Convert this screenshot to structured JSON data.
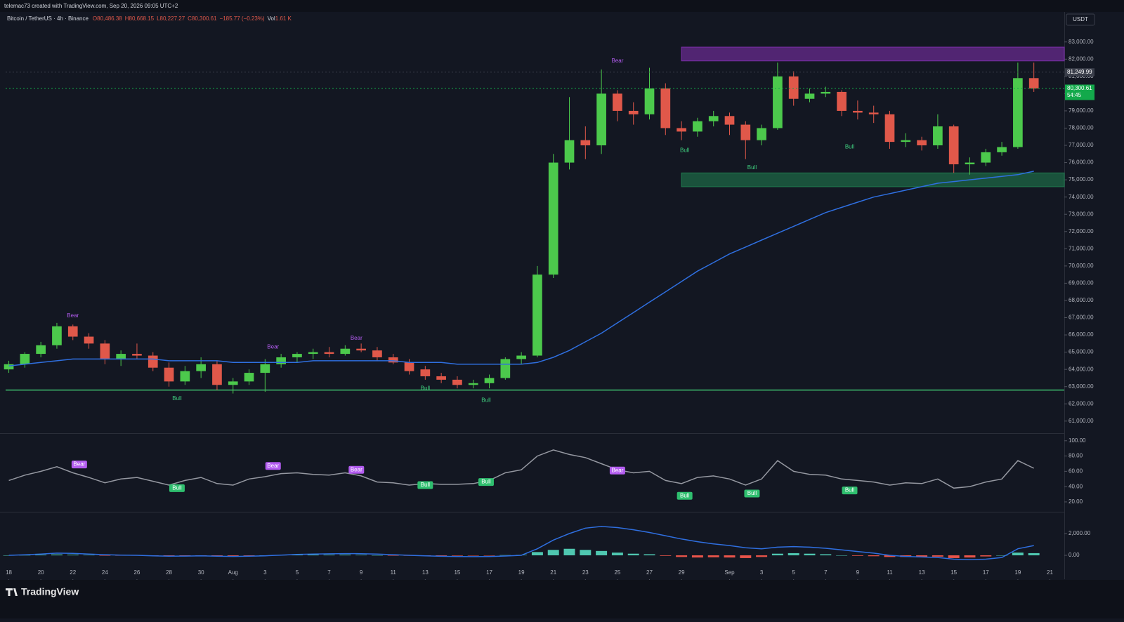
{
  "header": {
    "author_line": "telemac73 created with TradingView.com, Sep 20, 2026 09:05 UTC+2",
    "symbol": "Bitcoin / TetherUS · 4h · Binance",
    "open": "O80,486.38",
    "high": "H80,668.15",
    "low": "L80,227.27",
    "close": "C80,300.61",
    "change": "−185.77 (−0.23%)",
    "volume_label": "Vol",
    "volume": "1.61 K",
    "currency": "USDT"
  },
  "footer": {
    "brand": "TradingView"
  },
  "chart_data": [
    {
      "type": "candlestick",
      "x": [
        0,
        1,
        2,
        3,
        4,
        5,
        6,
        7,
        8,
        9,
        10,
        11,
        12,
        13,
        14,
        15,
        16,
        17,
        18,
        19,
        20,
        21,
        22,
        23,
        24,
        25,
        26,
        27,
        28,
        29,
        30,
        31,
        32,
        33,
        34,
        35,
        36,
        37,
        38,
        39,
        40,
        41,
        42,
        43,
        44,
        45,
        46,
        47,
        48,
        49,
        50,
        51,
        52,
        53,
        54,
        55,
        56,
        57,
        58,
        59,
        60,
        61,
        62,
        63,
        64
      ],
      "open": [
        64000,
        64300,
        64900,
        65400,
        66500,
        65900,
        65500,
        64600,
        64900,
        64800,
        64100,
        63300,
        63900,
        64300,
        63100,
        63300,
        63800,
        64300,
        64700,
        64900,
        65000,
        64900,
        65200,
        65100,
        64700,
        64400,
        64000,
        63600,
        63400,
        63100,
        63200,
        63500,
        64600,
        64800,
        69500,
        76000,
        77300,
        77000,
        80000,
        79000,
        78800,
        80300,
        78000,
        77800,
        78400,
        78700,
        78200,
        77300,
        78000,
        81000,
        79700,
        80000,
        80100,
        79000,
        78900,
        78800,
        77200,
        77300,
        77000,
        78100,
        75900,
        76000,
        76600,
        76900,
        80900
      ],
      "high": [
        64500,
        65000,
        65600,
        66700,
        66600,
        66100,
        65700,
        65100,
        65500,
        65000,
        64400,
        64200,
        64700,
        64500,
        63500,
        64000,
        64600,
        64900,
        65000,
        65200,
        65300,
        65400,
        65500,
        65300,
        64900,
        64600,
        64200,
        63800,
        63600,
        63400,
        63700,
        64700,
        65000,
        70000,
        76500,
        79800,
        78100,
        81400,
        80200,
        79500,
        81500,
        80600,
        78400,
        78600,
        79000,
        78900,
        78400,
        78200,
        81800,
        81300,
        80300,
        80400,
        80200,
        79600,
        79300,
        79000,
        77700,
        77500,
        78800,
        78200,
        76300,
        76800,
        77200,
        81800,
        81800
      ],
      "low": [
        63800,
        64100,
        64700,
        65200,
        65700,
        65200,
        64300,
        64200,
        64600,
        63900,
        63000,
        63100,
        63500,
        62800,
        62600,
        63100,
        62700,
        64100,
        64400,
        64600,
        64700,
        64800,
        65000,
        64500,
        64300,
        63700,
        63400,
        63200,
        62900,
        62900,
        62900,
        63400,
        64300,
        64700,
        69300,
        75600,
        76200,
        76500,
        78400,
        78200,
        78500,
        77600,
        77300,
        77500,
        78100,
        77600,
        76200,
        77000,
        77900,
        79300,
        79500,
        79800,
        78700,
        78500,
        78300,
        76800,
        76900,
        76700,
        76800,
        75400,
        75300,
        75800,
        76400,
        76800,
        80100
      ],
      "close": [
        64300,
        64900,
        65400,
        66500,
        65900,
        65500,
        64600,
        64900,
        64800,
        64100,
        63300,
        63900,
        64300,
        63100,
        63300,
        63800,
        64300,
        64700,
        64900,
        65000,
        64900,
        65200,
        65100,
        64700,
        64400,
        63900,
        63600,
        63400,
        63100,
        63200,
        63500,
        64600,
        64800,
        69500,
        76000,
        77300,
        77000,
        80000,
        79000,
        78800,
        80300,
        78000,
        77800,
        78400,
        78700,
        78200,
        77300,
        78000,
        81000,
        79700,
        80000,
        80100,
        79000,
        78900,
        78800,
        77200,
        77300,
        77000,
        78100,
        75900,
        76000,
        76600,
        76900,
        80900,
        80300
      ],
      "colors": {
        "up": "#4cc94c",
        "down": "#e0584a"
      },
      "lines": [
        {
          "color": "#2f6fe0",
          "values": [
            64200,
            64300,
            64400,
            64500,
            64600,
            64600,
            64600,
            64600,
            64600,
            64600,
            64500,
            64500,
            64500,
            64500,
            64400,
            64400,
            64400,
            64400,
            64400,
            64500,
            64500,
            64500,
            64500,
            64500,
            64500,
            64400,
            64400,
            64400,
            64300,
            64300,
            64300,
            64300,
            64300,
            64400,
            64700,
            65100,
            65600,
            66100,
            66700,
            67300,
            67900,
            68500,
            69100,
            69700,
            70200,
            70700,
            71100,
            71500,
            71900,
            72300,
            72700,
            73100,
            73400,
            73700,
            74000,
            74200,
            74400,
            74600,
            74800,
            74900,
            75000,
            75100,
            75200,
            75300,
            75500
          ]
        }
      ],
      "zones": [
        {
          "x": [
            42,
            65.9
          ],
          "y": [
            81900,
            82700
          ],
          "color": "#7b2fa8"
        },
        {
          "x": [
            42,
            65.9
          ],
          "y": [
            74600,
            75400
          ],
          "color": "#1f7a4e"
        }
      ],
      "levels": [
        {
          "y": 62800,
          "color": "#3fbf6f"
        }
      ],
      "price_labels": [
        {
          "value": 81249.99,
          "label": "81,249.99",
          "color": "#3a3e4a"
        },
        {
          "value": 80300.61,
          "label": "80,300.61",
          "color": "#13a94b",
          "countdown": "54:45"
        }
      ],
      "annotations": [
        {
          "text": "Bear",
          "x": 4,
          "y": 67100,
          "color": "#b35cf0"
        },
        {
          "text": "Bear",
          "x": 16.5,
          "y": 65300,
          "color": "#b35cf0"
        },
        {
          "text": "Bear",
          "x": 21.7,
          "y": 65800,
          "color": "#b35cf0"
        },
        {
          "text": "Bear",
          "x": 38,
          "y": 81900,
          "color": "#b35cf0"
        },
        {
          "text": "Bull",
          "x": 10.5,
          "y": 62300,
          "color": "#3fcf7f"
        },
        {
          "text": "Bull",
          "x": 26,
          "y": 62900,
          "color": "#3fcf7f"
        },
        {
          "text": "Bull",
          "x": 29.8,
          "y": 62200,
          "color": "#3fcf7f"
        },
        {
          "text": "Bull",
          "x": 42.2,
          "y": 76700,
          "color": "#3fcf7f"
        },
        {
          "text": "Bull",
          "x": 46.4,
          "y": 75700,
          "color": "#3fcf7f"
        },
        {
          "text": "Bull",
          "x": 52.5,
          "y": 76900,
          "color": "#3fcf7f"
        }
      ],
      "xlim": [
        -0.2,
        65.9
      ],
      "xticks": [
        {
          "value": 0,
          "label": "18"
        },
        {
          "value": 2,
          "label": "20"
        },
        {
          "value": 4,
          "label": "22"
        },
        {
          "value": 6,
          "label": "24"
        },
        {
          "value": 8,
          "label": "26"
        },
        {
          "value": 10,
          "label": "28"
        },
        {
          "value": 12,
          "label": "30"
        },
        {
          "value": 14,
          "label": "Aug"
        },
        {
          "value": 16,
          "label": "3"
        },
        {
          "value": 18,
          "label": "5"
        },
        {
          "value": 20,
          "label": "7"
        },
        {
          "value": 22,
          "label": "9"
        },
        {
          "value": 24,
          "label": "11"
        },
        {
          "value": 26,
          "label": "13"
        },
        {
          "value": 28,
          "label": "15"
        },
        {
          "value": 30,
          "label": "17"
        },
        {
          "value": 32,
          "label": "19"
        },
        {
          "value": 34,
          "label": "21"
        },
        {
          "value": 36,
          "label": "23"
        },
        {
          "value": 38,
          "label": "25"
        },
        {
          "value": 40,
          "label": "27"
        },
        {
          "value": 42,
          "label": "29"
        },
        {
          "value": 45,
          "label": "Sep"
        },
        {
          "value": 47,
          "label": "3"
        },
        {
          "value": 49,
          "label": "5"
        },
        {
          "value": 51,
          "label": "7"
        },
        {
          "value": 53,
          "label": "9"
        },
        {
          "value": 55,
          "label": "11"
        },
        {
          "value": 57,
          "label": "13"
        },
        {
          "value": 59,
          "label": "15"
        },
        {
          "value": 61,
          "label": "17"
        },
        {
          "value": 63,
          "label": "19"
        },
        {
          "value": 65,
          "label": "21"
        }
      ],
      "ylim": [
        60300,
        84700
      ],
      "yticks": [
        {
          "value": 61000,
          "label": "61,000.00"
        },
        {
          "value": 62000,
          "label": "62,000.00"
        },
        {
          "value": 63000,
          "label": "63,000.00"
        },
        {
          "value": 64000,
          "label": "64,000.00"
        },
        {
          "value": 65000,
          "label": "65,000.00"
        },
        {
          "value": 66000,
          "label": "66,000.00"
        },
        {
          "value": 67000,
          "label": "67,000.00"
        },
        {
          "value": 68000,
          "label": "68,000.00"
        },
        {
          "value": 69000,
          "label": "69,000.00"
        },
        {
          "value": 70000,
          "label": "70,000.00"
        },
        {
          "value": 71000,
          "label": "71,000.00"
        },
        {
          "value": 72000,
          "label": "72,000.00"
        },
        {
          "value": 73000,
          "label": "73,000.00"
        },
        {
          "value": 74000,
          "label": "74,000.00"
        },
        {
          "value": 75000,
          "label": "75,000.00"
        },
        {
          "value": 76000,
          "label": "76,000.00"
        },
        {
          "value": 77000,
          "label": "77,000.00"
        },
        {
          "value": 78000,
          "label": "78,000.00"
        },
        {
          "value": 79000,
          "label": "79,000.00"
        },
        {
          "value": 80000,
          "label": "80,000.00"
        },
        {
          "value": 81000,
          "label": "81,000.00"
        },
        {
          "value": 82000,
          "label": "82,000.00"
        },
        {
          "value": 83000,
          "label": "83,000.00"
        }
      ]
    },
    {
      "type": "line",
      "x": [
        0,
        1,
        2,
        3,
        4,
        5,
        6,
        7,
        8,
        9,
        10,
        11,
        12,
        13,
        14,
        15,
        16,
        17,
        18,
        19,
        20,
        21,
        22,
        23,
        24,
        25,
        26,
        27,
        28,
        29,
        30,
        31,
        32,
        33,
        34,
        35,
        36,
        37,
        38,
        39,
        40,
        41,
        42,
        43,
        44,
        45,
        46,
        47,
        48,
        49,
        50,
        51,
        52,
        53,
        54,
        55,
        56,
        57,
        58,
        59,
        60,
        61,
        62,
        63,
        64
      ],
      "lines": [
        {
          "color": "#9598a1",
          "values": [
            48,
            55,
            60,
            66,
            58,
            52,
            45,
            50,
            52,
            47,
            42,
            48,
            52,
            44,
            42,
            50,
            53,
            57,
            58,
            56,
            55,
            58,
            54,
            46,
            45,
            42,
            44,
            43,
            43,
            44,
            48,
            58,
            62,
            80,
            88,
            82,
            78,
            70,
            62,
            58,
            60,
            48,
            44,
            52,
            54,
            50,
            42,
            50,
            74,
            60,
            56,
            55,
            50,
            48,
            46,
            42,
            45,
            44,
            50,
            38,
            40,
            46,
            50,
            74,
            64
          ]
        }
      ],
      "annotations": [
        {
          "text": "Bear",
          "x": 4.4,
          "y": 69,
          "color": "#b35cf0"
        },
        {
          "text": "Bear",
          "x": 16.5,
          "y": 67,
          "color": "#b35cf0"
        },
        {
          "text": "Bear",
          "x": 21.7,
          "y": 62,
          "color": "#b35cf0"
        },
        {
          "text": "Bear",
          "x": 38,
          "y": 61,
          "color": "#b35cf0"
        },
        {
          "text": "Bull",
          "x": 10.5,
          "y": 38,
          "color": "#2fbf6f"
        },
        {
          "text": "Bull",
          "x": 26,
          "y": 42,
          "color": "#2fbf6f"
        },
        {
          "text": "Bull",
          "x": 29.8,
          "y": 46,
          "color": "#2fbf6f"
        },
        {
          "text": "Bull",
          "x": 42.2,
          "y": 28,
          "color": "#2fbf6f"
        },
        {
          "text": "Bull",
          "x": 46.4,
          "y": 31,
          "color": "#2fbf6f"
        },
        {
          "text": "Bull",
          "x": 52.5,
          "y": 35,
          "color": "#2fbf6f"
        }
      ],
      "ylim": [
        8,
        109
      ],
      "yticks": [
        {
          "value": 100,
          "label": "100.00"
        },
        {
          "value": 80,
          "label": "80.00"
        },
        {
          "value": 60,
          "label": "60.00"
        },
        {
          "value": 40,
          "label": "40.00"
        },
        {
          "value": 20,
          "label": "20.00"
        }
      ]
    },
    {
      "type": "bar",
      "x": [
        0,
        1,
        2,
        3,
        4,
        5,
        6,
        7,
        8,
        9,
        10,
        11,
        12,
        13,
        14,
        15,
        16,
        17,
        18,
        19,
        20,
        21,
        22,
        23,
        24,
        25,
        26,
        27,
        28,
        29,
        30,
        31,
        32,
        33,
        34,
        35,
        36,
        37,
        38,
        39,
        40,
        41,
        42,
        43,
        44,
        45,
        46,
        47,
        48,
        49,
        50,
        51,
        52,
        53,
        54,
        55,
        56,
        57,
        58,
        59,
        60,
        61,
        62,
        63,
        64
      ],
      "values": [
        0,
        20,
        50,
        80,
        60,
        30,
        -20,
        -30,
        -20,
        -40,
        -60,
        -40,
        -20,
        -50,
        -60,
        -30,
        0,
        30,
        50,
        60,
        50,
        60,
        40,
        10,
        -20,
        -40,
        -50,
        -50,
        -40,
        -30,
        -10,
        20,
        40,
        300,
        500,
        600,
        500,
        400,
        250,
        150,
        100,
        -50,
        -150,
        -200,
        -180,
        -200,
        -250,
        -150,
        150,
        200,
        150,
        100,
        0,
        -50,
        -80,
        -150,
        -150,
        -160,
        -120,
        -250,
        -200,
        -100,
        0,
        250,
        200
      ],
      "colors": {
        "up": "#4fc7b0",
        "down": "#e8544a"
      },
      "lines": [
        {
          "color": "#2f6fe0",
          "values": [
            0,
            50,
            120,
            200,
            180,
            120,
            60,
            20,
            0,
            -40,
            -80,
            -70,
            -50,
            -80,
            -100,
            -80,
            -40,
            20,
            80,
            120,
            140,
            160,
            150,
            120,
            60,
            0,
            -50,
            -90,
            -110,
            -120,
            -110,
            -60,
            0,
            600,
            1400,
            2000,
            2500,
            2650,
            2550,
            2350,
            2100,
            1800,
            1500,
            1250,
            1050,
            900,
            700,
            600,
            750,
            800,
            750,
            650,
            500,
            350,
            200,
            0,
            -100,
            -150,
            -200,
            -350,
            -400,
            -350,
            -200,
            600,
            900
          ]
        }
      ],
      "ylim": [
        -2190,
        3935
      ],
      "yticks": [
        {
          "value": 2000,
          "label": "2,000.00"
        },
        {
          "value": 0,
          "label": "0.00"
        }
      ]
    }
  ]
}
